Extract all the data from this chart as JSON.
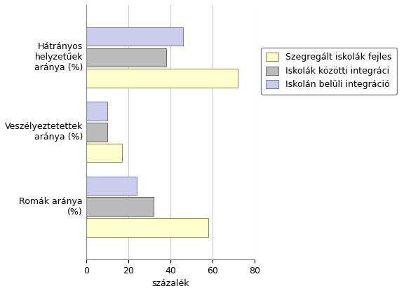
{
  "categories": [
    "Romák aránya\n(%)",
    "Veszélyeztetettek\naránya (%)",
    "Hátrányos\nhelyzetűek\naránya (%)"
  ],
  "series": [
    {
      "label": "Szegregált iskolák fejles",
      "color": "#ffffcc",
      "edgecolor": "#888844",
      "values": [
        58,
        17,
        72
      ]
    },
    {
      "label": "Iskolák közötti integráci",
      "color": "#bbbbbb",
      "edgecolor": "#666666",
      "values": [
        32,
        10,
        38
      ]
    },
    {
      "label": "Iskolán belüli integráció",
      "color": "#ccccee",
      "edgecolor": "#7777aa",
      "values": [
        24,
        10,
        46
      ]
    }
  ],
  "xlabel": "százalék",
  "xlim": [
    0,
    80
  ],
  "xticks": [
    0,
    20,
    40,
    60,
    80
  ],
  "bar_height": 0.25,
  "background_color": "#ffffff",
  "legend_fontsize": 9,
  "axis_fontsize": 9,
  "tick_fontsize": 9
}
